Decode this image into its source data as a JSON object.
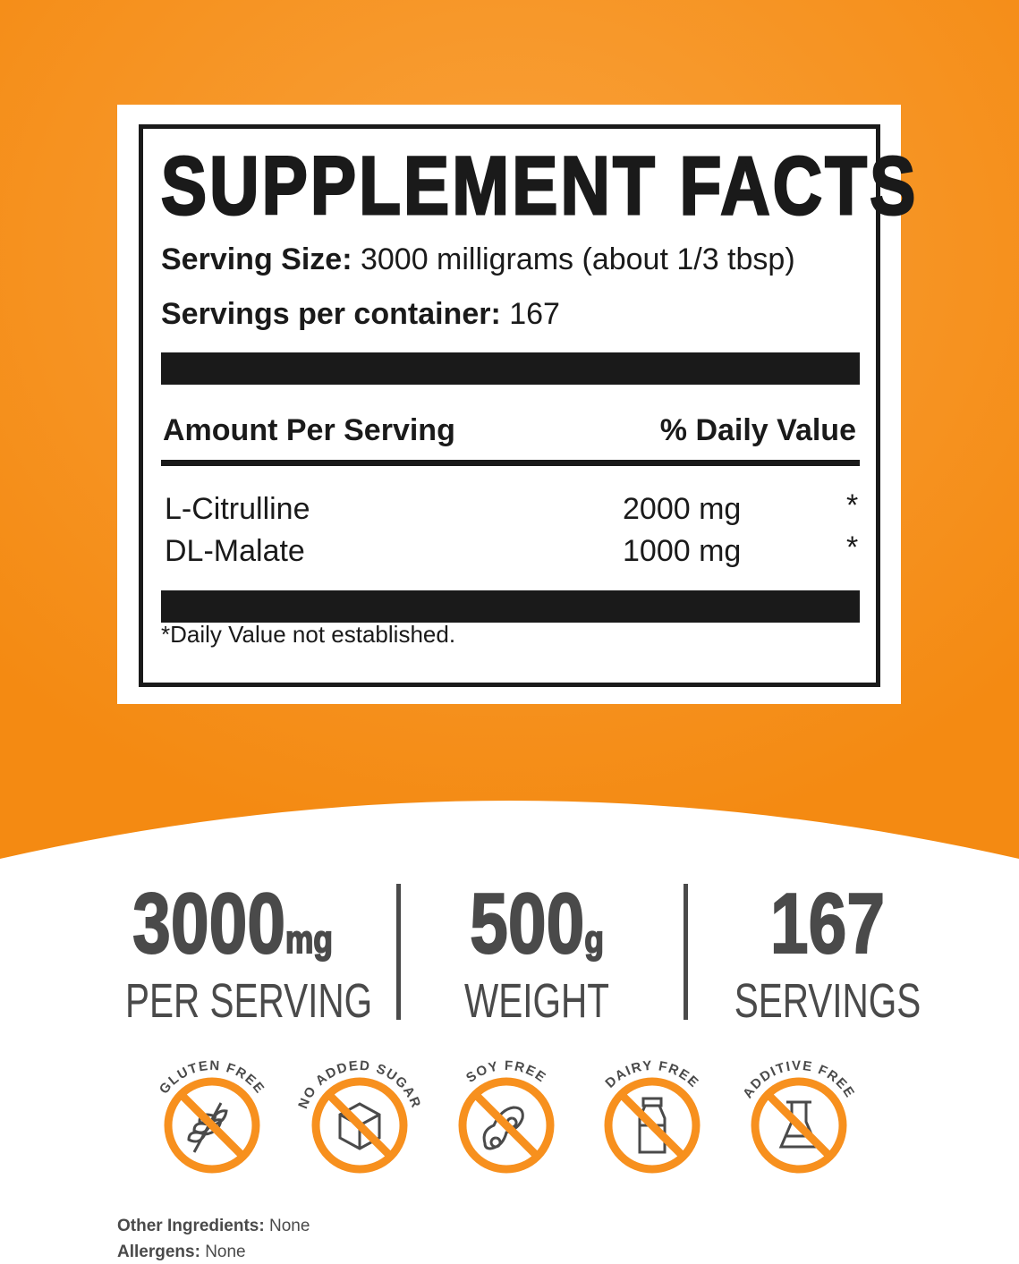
{
  "colors": {
    "brand_orange": "#f7901e",
    "text_dark": "#1a1a1a",
    "text_gray": "#4a4a4a"
  },
  "facts": {
    "title": "SUPPLEMENT FACTS",
    "serving_size_label": "Serving Size:",
    "serving_size_value": "3000 milligrams (about 1/3 tbsp)",
    "servings_label": "Servings per container:",
    "servings_value": "167",
    "amount_header": "Amount Per Serving",
    "dv_header": "% Daily Value",
    "ingredients": [
      {
        "name": "L-Citrulline",
        "amount": "2000 mg",
        "dv": "*"
      },
      {
        "name": "DL-Malate",
        "amount": "1000 mg",
        "dv": "*"
      }
    ],
    "footnote": "*Daily Value not established."
  },
  "stats": [
    {
      "value": "3000",
      "unit": "mg",
      "label": "PER SERVING"
    },
    {
      "value": "500",
      "unit": "g",
      "label": "WEIGHT"
    },
    {
      "value": "167",
      "unit": "",
      "label": "SERVINGS"
    }
  ],
  "badges": [
    {
      "label": "GLUTEN FREE",
      "icon": "wheat-icon"
    },
    {
      "label": "NO ADDED SUGAR",
      "icon": "sugar-cube-icon"
    },
    {
      "label": "SOY FREE",
      "icon": "soybean-icon"
    },
    {
      "label": "DAIRY FREE",
      "icon": "milk-bottle-icon"
    },
    {
      "label": "ADDITIVE FREE",
      "icon": "flask-icon"
    }
  ],
  "other": {
    "ingredients_label": "Other Ingredients:",
    "ingredients_value": "None",
    "allergens_label": "Allergens:",
    "allergens_value": "None"
  }
}
